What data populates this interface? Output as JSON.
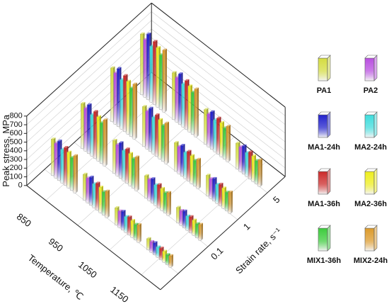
{
  "chart_data": {
    "type": "bar3d",
    "zlabel": "Peak stress, MPa",
    "xlabel": "Temperature, ℃",
    "ylabel": "Strain rate, s⁻¹",
    "x_categories": [
      "850",
      "950",
      "1050",
      "1150"
    ],
    "y_categories": [
      null,
      "0.1",
      "1",
      "5"
    ],
    "zlim": [
      0,
      800
    ],
    "zticks": [
      0,
      100,
      200,
      300,
      400,
      500,
      600,
      700,
      800
    ],
    "series": [
      {
        "name": "PA1",
        "color": "#d4dc40",
        "values": [
          [
            420,
            520,
            620,
            700
          ],
          [
            300,
            380,
            460,
            540
          ],
          [
            200,
            260,
            330,
            400
          ],
          [
            130,
            180,
            240,
            300
          ]
        ]
      },
      {
        "name": "PA2",
        "color": "#b84ee0",
        "values": [
          [
            400,
            495,
            590,
            665
          ],
          [
            285,
            360,
            437,
            513
          ],
          [
            190,
            247,
            314,
            380
          ],
          [
            124,
            171,
            228,
            285
          ]
        ]
      },
      {
        "name": "MA1-24h",
        "color": "#2222cc",
        "values": [
          [
            454,
            562,
            670,
            756
          ],
          [
            324,
            410,
            497,
            583
          ],
          [
            216,
            281,
            356,
            432
          ],
          [
            140,
            194,
            259,
            324
          ]
        ]
      },
      {
        "name": "MA2-24h",
        "color": "#3edcdc",
        "values": [
          [
            386,
            478,
            570,
            644
          ],
          [
            276,
            350,
            423,
            497
          ],
          [
            184,
            239,
            304,
            368
          ],
          [
            120,
            166,
            221,
            276
          ]
        ]
      },
      {
        "name": "MA1-36h",
        "color": "#cc2a2a",
        "values": [
          [
            437,
            541,
            645,
            728
          ],
          [
            312,
            395,
            478,
            562
          ],
          [
            208,
            270,
            343,
            416
          ],
          [
            135,
            187,
            250,
            312
          ]
        ]
      },
      {
        "name": "MA2-36h",
        "color": "#eeee1c",
        "values": [
          [
            412,
            510,
            608,
            686
          ],
          [
            294,
            372,
            451,
            529
          ],
          [
            196,
            255,
            323,
            392
          ],
          [
            127,
            176,
            235,
            294
          ]
        ]
      },
      {
        "name": "MIX1-36h",
        "color": "#3ccc3c",
        "values": [
          [
            378,
            468,
            558,
            630
          ],
          [
            270,
            342,
            414,
            486
          ],
          [
            180,
            234,
            297,
            360
          ],
          [
            117,
            162,
            216,
            270
          ]
        ]
      },
      {
        "name": "MIX2-24h",
        "color": "#dc9a2a",
        "values": [
          [
            428,
            530,
            632,
            714
          ],
          [
            306,
            388,
            469,
            551
          ],
          [
            204,
            265,
            337,
            408
          ],
          [
            133,
            184,
            245,
            306
          ]
        ]
      }
    ]
  }
}
